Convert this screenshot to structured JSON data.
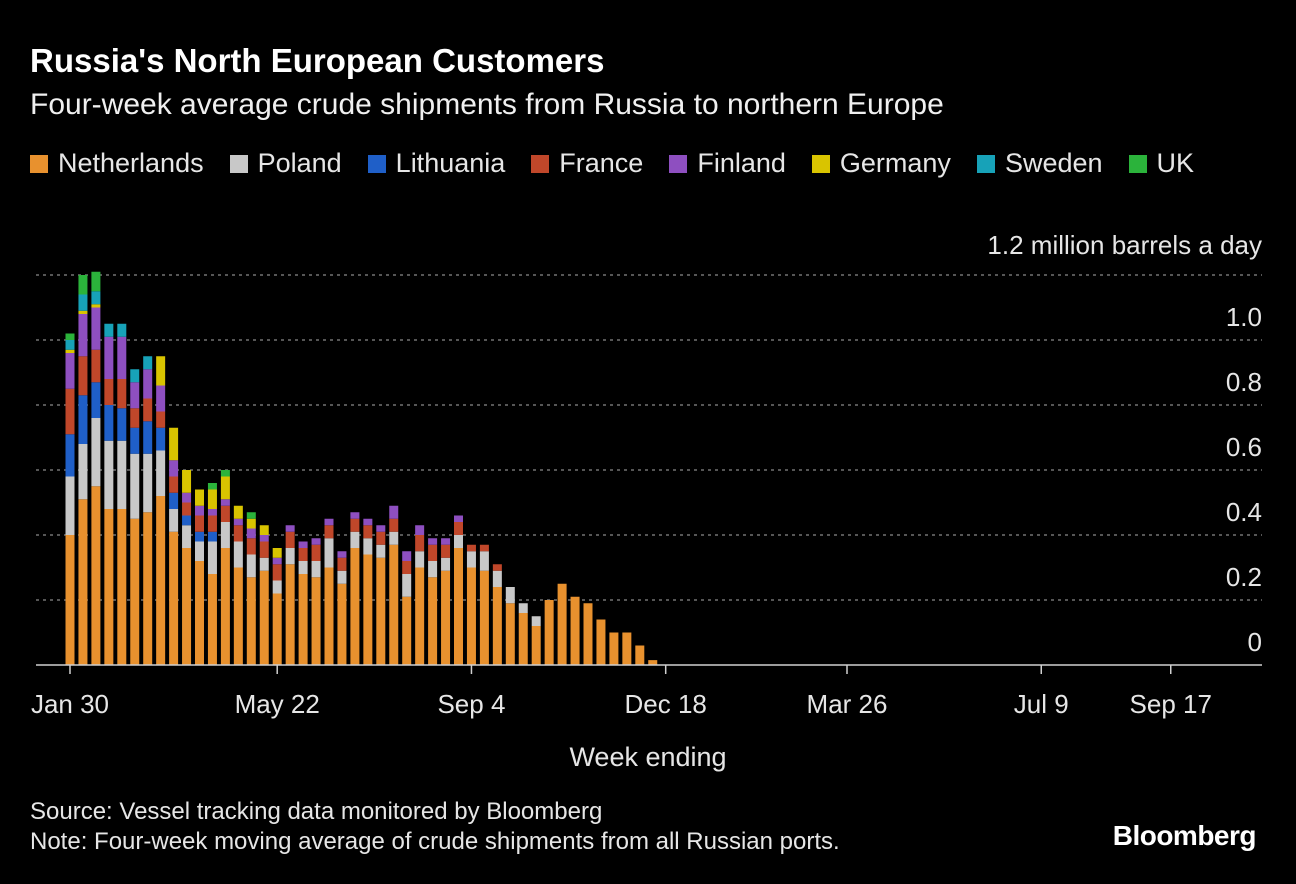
{
  "header": {
    "title": "Russia's North European Customers",
    "subtitle": "Four-week average crude shipments from Russia to northern Europe"
  },
  "footer": {
    "source": "Source: Vessel tracking data monitored by Bloomberg",
    "note": "Note: Four-week moving average of crude shipments from all Russian ports.",
    "logo": "Bloomberg"
  },
  "chart_data": {
    "type": "bar",
    "stacked": true,
    "unit_label": "1.2 million barrels a day",
    "xlabel": "Week ending",
    "ylabel": "",
    "ylim": [
      0,
      1.2
    ],
    "yticks": [
      "0",
      "0.2",
      "0.4",
      "0.6",
      "0.8",
      "1.0"
    ],
    "ytick_values": [
      0,
      0.2,
      0.4,
      0.6,
      0.8,
      1.0
    ],
    "grid": true,
    "legend_position": "top-left",
    "xticks": [
      {
        "label": "Jan 30",
        "index": 0
      },
      {
        "label": "May 22",
        "index": 16
      },
      {
        "label": "Sep 4",
        "index": 31
      },
      {
        "label": "Dec 18",
        "index": 46
      },
      {
        "label": "Mar 26",
        "index": 60
      },
      {
        "label": "Jul 9",
        "index": 75
      },
      {
        "label": "Sep 17",
        "index": 85
      }
    ],
    "n_weeks": 93,
    "series": [
      {
        "name": "Netherlands",
        "color": "#e8912e",
        "values": [
          0.4,
          0.51,
          0.55,
          0.48,
          0.48,
          0.45,
          0.47,
          0.52,
          0.41,
          0.36,
          0.32,
          0.28,
          0.36,
          0.3,
          0.27,
          0.29,
          0.22,
          0.31,
          0.28,
          0.27,
          0.3,
          0.25,
          0.36,
          0.34,
          0.33,
          0.37,
          0.21,
          0.3,
          0.27,
          0.29,
          0.36,
          0.3,
          0.29,
          0.24,
          0.19,
          0.16,
          0.12,
          0.2,
          0.25,
          0.21,
          0.19,
          0.14,
          0.1,
          0.1,
          0.06,
          0.015,
          0,
          0,
          0,
          0,
          0,
          0,
          0,
          0,
          0,
          0,
          0,
          0,
          0,
          0,
          0,
          0,
          0,
          0,
          0,
          0,
          0,
          0,
          0,
          0,
          0,
          0,
          0,
          0,
          0,
          0,
          0,
          0,
          0,
          0,
          0,
          0,
          0,
          0,
          0,
          0,
          0,
          0,
          0,
          0,
          0,
          0,
          0
        ]
      },
      {
        "name": "Poland",
        "color": "#c8c8c8",
        "values": [
          0.18,
          0.17,
          0.21,
          0.21,
          0.21,
          0.2,
          0.18,
          0.14,
          0.07,
          0.07,
          0.06,
          0.1,
          0.08,
          0.08,
          0.07,
          0.04,
          0.04,
          0.05,
          0.04,
          0.05,
          0.09,
          0.04,
          0.05,
          0.05,
          0.04,
          0.04,
          0.07,
          0.05,
          0.05,
          0.04,
          0.04,
          0.05,
          0.06,
          0.05,
          0.05,
          0.03,
          0.03,
          0,
          0,
          0,
          0,
          0,
          0,
          0,
          0,
          0,
          0,
          0,
          0,
          0,
          0,
          0,
          0,
          0,
          0,
          0,
          0,
          0,
          0,
          0,
          0,
          0,
          0,
          0,
          0,
          0,
          0,
          0,
          0,
          0,
          0,
          0,
          0,
          0,
          0,
          0,
          0,
          0,
          0,
          0,
          0,
          0,
          0,
          0,
          0,
          0,
          0,
          0,
          0,
          0,
          0,
          0,
          0
        ]
      },
      {
        "name": "Lithuania",
        "color": "#1f5fc8",
        "values": [
          0.13,
          0.15,
          0.11,
          0.11,
          0.1,
          0.08,
          0.1,
          0.07,
          0.05,
          0.03,
          0.03,
          0.03,
          0,
          0,
          0,
          0,
          0,
          0,
          0,
          0,
          0,
          0,
          0,
          0,
          0,
          0,
          0,
          0,
          0,
          0,
          0,
          0,
          0,
          0,
          0,
          0,
          0,
          0,
          0,
          0,
          0,
          0,
          0,
          0,
          0,
          0,
          0,
          0,
          0,
          0,
          0,
          0,
          0,
          0,
          0,
          0,
          0,
          0,
          0,
          0,
          0,
          0,
          0,
          0,
          0,
          0,
          0,
          0,
          0,
          0,
          0,
          0,
          0,
          0,
          0,
          0,
          0,
          0,
          0,
          0,
          0,
          0,
          0,
          0,
          0,
          0,
          0,
          0,
          0,
          0,
          0,
          0,
          0
        ]
      },
      {
        "name": "France",
        "color": "#c0472a",
        "values": [
          0.14,
          0.12,
          0.1,
          0.08,
          0.09,
          0.06,
          0.07,
          0.05,
          0.05,
          0.04,
          0.05,
          0.05,
          0.05,
          0.05,
          0.05,
          0.05,
          0.05,
          0.05,
          0.04,
          0.05,
          0.04,
          0.04,
          0.04,
          0.04,
          0.04,
          0.04,
          0.04,
          0.05,
          0.05,
          0.04,
          0.04,
          0.02,
          0.02,
          0.02,
          0,
          0,
          0,
          0,
          0,
          0,
          0,
          0,
          0,
          0,
          0,
          0,
          0,
          0,
          0,
          0,
          0,
          0,
          0,
          0,
          0,
          0,
          0,
          0,
          0,
          0,
          0,
          0,
          0,
          0,
          0,
          0,
          0,
          0,
          0,
          0,
          0,
          0,
          0,
          0,
          0,
          0,
          0,
          0,
          0,
          0,
          0,
          0,
          0,
          0,
          0,
          0,
          0,
          0,
          0,
          0,
          0,
          0,
          0
        ]
      },
      {
        "name": "Finland",
        "color": "#8e4fc0",
        "values": [
          0.11,
          0.13,
          0.13,
          0.13,
          0.13,
          0.08,
          0.09,
          0.08,
          0.05,
          0.03,
          0.03,
          0.02,
          0.02,
          0.02,
          0.03,
          0.02,
          0.02,
          0.02,
          0.02,
          0.02,
          0.02,
          0.02,
          0.02,
          0.02,
          0.02,
          0.04,
          0.03,
          0.03,
          0.02,
          0.02,
          0.02,
          0,
          0,
          0,
          0,
          0,
          0,
          0,
          0,
          0,
          0,
          0,
          0,
          0,
          0,
          0,
          0,
          0,
          0,
          0,
          0,
          0,
          0,
          0,
          0,
          0,
          0,
          0,
          0,
          0,
          0,
          0,
          0,
          0,
          0,
          0,
          0,
          0,
          0,
          0,
          0,
          0,
          0,
          0,
          0,
          0,
          0,
          0,
          0,
          0,
          0,
          0,
          0,
          0,
          0,
          0,
          0,
          0,
          0,
          0,
          0,
          0,
          0,
          0
        ]
      },
      {
        "name": "Germany",
        "color": "#d9c400",
        "values": [
          0.01,
          0.01,
          0.01,
          0,
          0,
          0,
          0,
          0.09,
          0.1,
          0.07,
          0.05,
          0.06,
          0.07,
          0.04,
          0.03,
          0.03,
          0.03,
          0,
          0,
          0,
          0,
          0,
          0,
          0,
          0,
          0,
          0,
          0,
          0,
          0,
          0,
          0,
          0,
          0,
          0,
          0,
          0,
          0,
          0,
          0,
          0,
          0,
          0,
          0,
          0,
          0,
          0,
          0,
          0,
          0,
          0,
          0,
          0,
          0,
          0,
          0,
          0,
          0,
          0,
          0,
          0,
          0,
          0,
          0,
          0,
          0,
          0,
          0,
          0,
          0,
          0,
          0,
          0,
          0,
          0,
          0,
          0,
          0,
          0,
          0,
          0,
          0,
          0,
          0,
          0,
          0,
          0,
          0,
          0,
          0,
          0,
          0,
          0
        ]
      },
      {
        "name": "Sweden",
        "color": "#17a2b8",
        "values": [
          0.03,
          0.05,
          0.04,
          0.04,
          0.04,
          0.04,
          0.04,
          0,
          0,
          0,
          0,
          0,
          0,
          0,
          0,
          0,
          0,
          0,
          0,
          0,
          0,
          0,
          0,
          0,
          0,
          0,
          0,
          0,
          0,
          0,
          0,
          0,
          0,
          0,
          0,
          0,
          0,
          0,
          0,
          0,
          0,
          0,
          0,
          0,
          0,
          0,
          0,
          0,
          0,
          0,
          0,
          0,
          0,
          0,
          0,
          0,
          0,
          0,
          0,
          0,
          0,
          0,
          0,
          0,
          0,
          0,
          0,
          0,
          0,
          0,
          0,
          0,
          0,
          0,
          0,
          0,
          0,
          0,
          0,
          0,
          0,
          0,
          0,
          0,
          0,
          0,
          0,
          0,
          0,
          0,
          0,
          0,
          0
        ]
      },
      {
        "name": "UK",
        "color": "#2bb33b",
        "values": [
          0.02,
          0.06,
          0.06,
          0,
          0,
          0,
          0,
          0,
          0,
          0,
          0,
          0.02,
          0.02,
          0,
          0.02,
          0,
          0,
          0,
          0,
          0,
          0,
          0,
          0,
          0,
          0,
          0,
          0,
          0,
          0,
          0,
          0,
          0,
          0,
          0,
          0,
          0,
          0,
          0,
          0,
          0,
          0,
          0,
          0,
          0,
          0,
          0,
          0,
          0,
          0,
          0,
          0,
          0,
          0,
          0,
          0,
          0,
          0,
          0,
          0,
          0,
          0,
          0,
          0,
          0,
          0,
          0,
          0,
          0,
          0,
          0,
          0,
          0,
          0,
          0,
          0,
          0,
          0,
          0,
          0,
          0,
          0,
          0,
          0,
          0,
          0,
          0,
          0,
          0,
          0,
          0,
          0,
          0,
          0
        ]
      }
    ]
  }
}
